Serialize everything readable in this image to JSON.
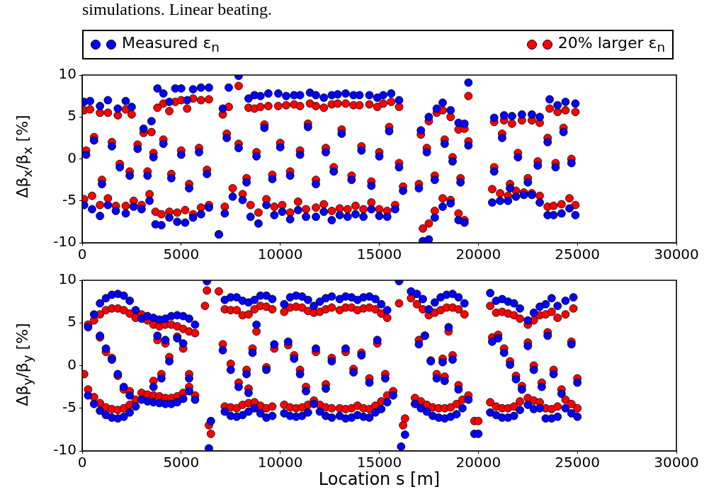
{
  "chart_data": [
    {
      "type": "scatter",
      "title": "simulations. Linear beating.",
      "ylabel": "Δβ$_{x}$/β$_{x}$ [%]",
      "legend": "top",
      "marker": "circle",
      "xlim": [
        0,
        30000
      ],
      "xticks": [
        0,
        5000,
        10000,
        15000,
        20000,
        25000,
        30000
      ],
      "ylim": [
        -10,
        10
      ],
      "yticks": [
        -10,
        -5,
        0,
        5,
        10
      ],
      "series": [
        {
          "name": "Measured ε$_{n}$",
          "color": "#0000ff",
          "x": [
            100,
            400,
            900,
            1300,
            1800,
            2200,
            2500,
            3100,
            3500,
            3800,
            4100,
            4400,
            4700,
            5000,
            5300,
            5600,
            6000,
            6400,
            7100,
            7400,
            7900,
            8400,
            8700,
            9000,
            9400,
            9900,
            10300,
            10700,
            11000,
            11500,
            11800,
            12200,
            12600,
            12900,
            13300,
            13700,
            14000,
            14500,
            14900,
            15200,
            15600,
            16000,
            17100,
            17500,
            17900,
            18200,
            18600,
            19000,
            19300,
            19500,
            20800,
            21300,
            21700,
            22200,
            22700,
            23100,
            23600,
            24000,
            24400,
            24900,
            100,
            500,
            900,
            1300,
            1700,
            2200,
            2600,
            3000,
            3400,
            3700,
            4000,
            4400,
            4800,
            5200,
            5600,
            6000,
            6400,
            6900,
            7200,
            7600,
            8100,
            8500,
            8900,
            9300,
            9700,
            10100,
            10500,
            10900,
            11300,
            11800,
            12200,
            12600,
            13000,
            13400,
            13800,
            14200,
            14600,
            15000,
            15400,
            15800,
            16200,
            17200,
            17500,
            17800,
            18200,
            18600,
            19000,
            19300,
            20700,
            21100,
            21500,
            21900,
            22300,
            22700,
            23100,
            23500,
            23800,
            24200,
            24600,
            24900,
            200,
            600,
            1000,
            1500,
            1900,
            2400,
            2800,
            3300,
            3600,
            4100,
            4500,
            5000,
            5400,
            5900,
            6300,
            7300,
            7900,
            8300,
            8800,
            9200,
            9600,
            10000,
            10500,
            11000,
            11400,
            11800,
            12300,
            12700,
            13100,
            13600,
            14100,
            14600,
            15000,
            15500,
            16000,
            17000,
            17400,
            17800,
            18300,
            18700,
            19100,
            19500,
            20800,
            21200,
            21600,
            22000,
            22500,
            23000,
            23500,
            23900,
            24300,
            24700
          ],
          "values": [
            6.8,
            6.9,
            6.3,
            7.0,
            6.0,
            6.9,
            6.2,
            3.6,
            4.5,
            8.4,
            7.8,
            6.8,
            8.4,
            8.4,
            7.0,
            8.3,
            8.5,
            8.5,
            6.0,
            8.5,
            9.9,
            7.2,
            7.6,
            7.5,
            7.8,
            7.8,
            7.5,
            7.6,
            7.6,
            7.9,
            7.6,
            7.3,
            7.6,
            7.7,
            7.8,
            7.6,
            7.6,
            7.6,
            7.3,
            7.6,
            7.8,
            7.0,
            3.4,
            5.0,
            6.0,
            6.7,
            5.8,
            4.3,
            4.2,
            9.1,
            4.9,
            5.2,
            5.1,
            5.3,
            5.3,
            5.0,
            7.1,
            6.4,
            6.8,
            6.6,
            -5.5,
            -6.0,
            -6.8,
            -5.5,
            -6.2,
            -6.5,
            -5.7,
            -6.0,
            -5.0,
            -7.8,
            -7.9,
            -7.0,
            -7.5,
            -7.6,
            -7.0,
            -6.6,
            -5.8,
            -9.0,
            -6.5,
            -4.5,
            -4.9,
            -6.9,
            -7.7,
            -5.5,
            -6.7,
            -6.3,
            -7.2,
            -6.1,
            -6.9,
            -6.9,
            -6.3,
            -7.3,
            -6.7,
            -6.9,
            -6.6,
            -6.9,
            -6.0,
            -6.8,
            -6.9,
            -6.0,
            -3.8,
            -9.8,
            -9.6,
            -7.0,
            -5.7,
            -5.3,
            -7.3,
            -7.6,
            -5.2,
            -5.0,
            -5.0,
            -4.5,
            -4.3,
            -4.3,
            -5.2,
            -6.7,
            -6.7,
            -6.5,
            -5.9,
            -6.7,
            0.5,
            2.2,
            -3.0,
            1.5,
            -1.0,
            -2.0,
            1.2,
            -2.0,
            0.2,
            1.8,
            -2.3,
            0.5,
            -3.5,
            0.8,
            -1.8,
            2.5,
            1.3,
            -2.8,
            0.3,
            3.7,
            -2.4,
            1.4,
            -2.0,
            0.5,
            3.8,
            -3.0,
            0.8,
            -1.5,
            3.0,
            -2.5,
            1.0,
            -3.2,
            0.3,
            3.3,
            -1.0,
            -3.5,
            0.8,
            -2.5,
            1.8,
            -0.3,
            -2.8,
            1.6,
            -1.5,
            2.5,
            -3.5,
            0.2,
            -2.8,
            -0.8,
            2.0,
            -1.0,
            3.2,
            -0.5
          ]
        },
        {
          "name": "20% larger ε$_{n}$",
          "color": "#ff0000",
          "x": [
            100,
            400,
            900,
            1300,
            1800,
            2200,
            2500,
            3100,
            3500,
            3800,
            4100,
            4400,
            4700,
            5000,
            5300,
            5600,
            6000,
            6400,
            7100,
            7400,
            7900,
            8400,
            8700,
            9000,
            9400,
            9900,
            10300,
            10700,
            11000,
            11500,
            11800,
            12200,
            12600,
            12900,
            13300,
            13700,
            14000,
            14500,
            14900,
            15200,
            15600,
            16000,
            17100,
            17500,
            17900,
            18200,
            18600,
            19000,
            19300,
            19500,
            20800,
            21300,
            21700,
            22200,
            22700,
            23100,
            23600,
            24000,
            24400,
            24900,
            100,
            500,
            900,
            1300,
            1700,
            2200,
            2600,
            3000,
            3400,
            3700,
            4000,
            4400,
            4800,
            5200,
            5600,
            6000,
            6400,
            6900,
            7200,
            7600,
            8100,
            8500,
            8900,
            9300,
            9700,
            10100,
            10500,
            10900,
            11300,
            11800,
            12200,
            12600,
            13000,
            13400,
            13800,
            14200,
            14600,
            15000,
            15400,
            15800,
            16200,
            17200,
            17500,
            17800,
            18200,
            18600,
            19000,
            19300,
            20700,
            21100,
            21500,
            21900,
            22300,
            22700,
            23100,
            23500,
            23800,
            24200,
            24600,
            24900,
            200,
            600,
            1000,
            1500,
            1900,
            2400,
            2800,
            3300,
            3600,
            4100,
            4500,
            5000,
            5400,
            5900,
            6300,
            7300,
            7900,
            8300,
            8800,
            9200,
            9600,
            10000,
            10500,
            11000,
            11400,
            11800,
            12300,
            12700,
            13100,
            13600,
            14100,
            14600,
            15000,
            15500,
            16000,
            17000,
            17400,
            17800,
            18300,
            18700,
            19100,
            19500,
            20800,
            21200,
            21600,
            22000,
            22500,
            23000,
            23500,
            23900,
            24300,
            24700
          ],
          "values": [
            5.8,
            5.9,
            5.5,
            5.5,
            5.2,
            5.9,
            5.3,
            3.1,
            3.2,
            6.1,
            6.6,
            5.7,
            6.8,
            7.0,
            6.0,
            7.2,
            7.0,
            7.1,
            5.3,
            6.2,
            8.7,
            6.1,
            6.0,
            6.2,
            6.3,
            6.3,
            6.4,
            6.5,
            6.3,
            6.6,
            6.3,
            6.1,
            6.5,
            6.6,
            6.6,
            6.4,
            6.4,
            6.5,
            6.2,
            6.6,
            6.8,
            6.2,
            2.9,
            4.5,
            5.5,
            5.8,
            5.0,
            3.5,
            3.6,
            7.5,
            4.4,
            4.6,
            4.2,
            4.6,
            4.6,
            4.3,
            6.0,
            5.6,
            5.8,
            5.6,
            -4.8,
            -4.4,
            -5.5,
            -4.7,
            -5.6,
            -5.6,
            -5.0,
            -5.5,
            -4.2,
            -6.3,
            -6.6,
            -6.3,
            -6.4,
            -6.1,
            -6.6,
            -5.8,
            -5.5,
            -9.0,
            -5.7,
            -3.5,
            -4.2,
            -5.5,
            -6.4,
            -4.8,
            -5.7,
            -5.5,
            -6.4,
            -5.1,
            -6.0,
            -5.8,
            -5.4,
            -6.2,
            -5.9,
            -6.0,
            -5.6,
            -6.0,
            -5.2,
            -6.0,
            -6.2,
            -5.5,
            -3.3,
            -8.3,
            -7.7,
            -6.2,
            -4.7,
            -4.9,
            -6.5,
            -7.3,
            -3.6,
            -4.1,
            -4.4,
            -3.8,
            -4.0,
            -4.1,
            -4.4,
            -5.7,
            -5.6,
            -5.4,
            -4.7,
            -5.5,
            1.0,
            2.6,
            -2.5,
            2.0,
            -0.6,
            -1.5,
            1.7,
            -1.5,
            0.7,
            2.3,
            -1.8,
            1.0,
            -3.0,
            1.3,
            -1.3,
            3.0,
            1.8,
            -2.3,
            0.8,
            4.1,
            -1.9,
            1.9,
            -1.5,
            1.0,
            4.2,
            -2.5,
            1.3,
            -1.0,
            3.5,
            -2.0,
            1.5,
            -2.7,
            0.8,
            3.8,
            -0.5,
            -3.0,
            1.3,
            -2.0,
            2.3,
            0.2,
            -2.3,
            2.1,
            -1.0,
            3.0,
            -3.0,
            0.7,
            -2.3,
            -0.3,
            2.5,
            -0.5,
            3.7,
            0.0
          ]
        }
      ]
    },
    {
      "type": "scatter",
      "xlabel": "Location s [m]",
      "ylabel": "Δβ$_{y}$/β$_{y}$ [%]",
      "marker": "circle",
      "xlim": [
        0,
        30000
      ],
      "xticks": [
        0,
        5000,
        10000,
        15000,
        20000,
        25000,
        30000
      ],
      "ylim": [
        -10,
        10
      ],
      "yticks": [
        -10,
        -5,
        0,
        5,
        10
      ],
      "series": [
        {
          "color": "#0000ff",
          "x": [
            300,
            600,
            900,
            1200,
            1500,
            1800,
            2100,
            2400,
            2700,
            3000,
            300,
            600,
            900,
            1200,
            1500,
            1800,
            2100,
            2400,
            2700,
            3000,
            900,
            1200,
            1500,
            1800,
            2100,
            2400,
            3300,
            3600,
            3900,
            4200,
            4500,
            4800,
            5100,
            5400,
            5700,
            3300,
            3600,
            3900,
            4200,
            4500,
            4800,
            5100,
            5400,
            5700,
            3600,
            4000,
            4400,
            4800,
            5100,
            5400,
            4200,
            3800,
            6300,
            6400,
            6500,
            7200,
            7500,
            7800,
            8100,
            8400,
            8700,
            9000,
            9300,
            9600,
            7200,
            7500,
            7800,
            8100,
            8400,
            8700,
            9000,
            9300,
            9600,
            7100,
            7500,
            7900,
            8400,
            8800,
            9300,
            9700,
            8300,
            8600,
            10200,
            10500,
            10800,
            11100,
            11400,
            11700,
            12000,
            12300,
            12600,
            10200,
            10500,
            10800,
            11100,
            11400,
            11700,
            12000,
            12300,
            12600,
            10400,
            10700,
            11000,
            11300,
            11800,
            12300,
            12600,
            13000,
            13300,
            13600,
            13900,
            14200,
            14500,
            14800,
            15100,
            15400,
            13000,
            13300,
            13600,
            13900,
            14200,
            14500,
            14800,
            15100,
            15400,
            13300,
            13700,
            14100,
            14500,
            14900,
            15300,
            15700,
            16000,
            16100,
            16300,
            16600,
            16900,
            17200,
            17500,
            17800,
            18100,
            18400,
            18700,
            19000,
            19300,
            16800,
            17100,
            17400,
            17700,
            18000,
            18300,
            18600,
            18900,
            19200,
            17000,
            17300,
            17600,
            17900,
            18200,
            18500,
            18700,
            18300,
            19000,
            19500,
            19800,
            20000,
            20600,
            20900,
            21200,
            21500,
            21800,
            22100,
            22500,
            22800,
            23100,
            23400,
            23700,
            24000,
            24400,
            24800,
            20600,
            20900,
            21200,
            21500,
            21800,
            22100,
            22500,
            22800,
            23100,
            23400,
            23700,
            24000,
            24400,
            24700,
            25000,
            20700,
            21000,
            21300,
            21600,
            21900,
            22200,
            22500,
            22800,
            23200,
            23500,
            23800,
            24200,
            24700,
            25000
          ],
          "values": [
            4.5,
            6.0,
            7.3,
            7.9,
            8.3,
            8.4,
            8.2,
            7.6,
            6.5,
            5.5,
            -3.5,
            -4.5,
            -5.3,
            -5.8,
            -6.1,
            -6.2,
            -6.0,
            -5.5,
            -4.8,
            -4.0,
            3.5,
            2.0,
            0.7,
            -1.0,
            -2.5,
            -3.5,
            5.8,
            5.6,
            5.4,
            5.5,
            5.8,
            5.9,
            5.8,
            5.5,
            4.8,
            -4.2,
            -4.3,
            -4.4,
            -4.5,
            -4.5,
            -4.3,
            -3.9,
            -3.0,
            -4.0,
            -2.5,
            -1.5,
            0.5,
            3.2,
            2.6,
            -1.5,
            3.0,
            3.5,
            9.9,
            -9.7,
            -6.5,
            7.7,
            8.0,
            8.0,
            7.6,
            7.4,
            7.7,
            8.2,
            8.2,
            7.8,
            -5.4,
            -5.9,
            -6.0,
            -5.8,
            -5.4,
            -5.0,
            -5.6,
            -6.1,
            -5.9,
            1.8,
            -0.5,
            -2.5,
            -3.2,
            4.8,
            -0.5,
            2.5,
            -1.0,
            1.5,
            7.2,
            8.0,
            8.2,
            8.1,
            7.7,
            7.0,
            7.5,
            7.9,
            8.1,
            -5.6,
            -5.9,
            -6.0,
            -5.9,
            -5.5,
            -4.5,
            -5.4,
            -5.9,
            -6.1,
            2.8,
            0.8,
            -1.0,
            -3.0,
            2.0,
            -2.7,
            0.5,
            7.8,
            8.1,
            8.0,
            7.7,
            8.0,
            8.1,
            7.8,
            7.2,
            6.5,
            -5.9,
            -6.2,
            -6.1,
            -5.8,
            -6.0,
            -6.1,
            -5.5,
            -5.1,
            -4.3,
            2.0,
            -0.8,
            1.2,
            -2.0,
            3.0,
            -1.5,
            -3.5,
            9.9,
            -9.5,
            -8.1,
            8.7,
            8.4,
            7.8,
            6.6,
            7.4,
            8.0,
            8.3,
            8.4,
            8.0,
            7.3,
            -4.5,
            -5.0,
            -5.4,
            -5.9,
            -6.1,
            -6.2,
            -6.0,
            -5.7,
            -5.0,
            2.5,
            3.5,
            0.5,
            -1.5,
            0.4,
            4.5,
            0.7,
            -1.8,
            -2.8,
            -4.0,
            -8.0,
            -8.0,
            8.5,
            7.6,
            7.8,
            7.5,
            7.3,
            6.7,
            5.3,
            6.2,
            6.9,
            7.2,
            7.9,
            7.0,
            7.6,
            8.0,
            -5.5,
            -5.8,
            -6.1,
            -6.1,
            -5.9,
            -5.2,
            -4.6,
            -5.1,
            -5.0,
            -6.2,
            -6.2,
            -6.0,
            -5.0,
            -5.6,
            -6.0,
            2.8,
            3.2,
            1.5,
            0.1,
            -1.6,
            -2.8,
            2.3,
            -0.5,
            -2.5,
            3.5,
            -1.0,
            -3.3,
            2.5,
            -2.0
          ]
        },
        {
          "color": "#ff0000",
          "x": [
            300,
            600,
            900,
            1200,
            1500,
            1800,
            2100,
            2400,
            2700,
            3000,
            300,
            600,
            900,
            1200,
            1500,
            1800,
            2100,
            2400,
            2700,
            3000,
            900,
            1200,
            1500,
            1800,
            2100,
            2400,
            100,
            3300,
            3600,
            3900,
            4200,
            4500,
            4800,
            5100,
            5400,
            5700,
            3300,
            3600,
            3900,
            4200,
            4500,
            4800,
            5100,
            5400,
            5700,
            3600,
            4000,
            4400,
            4800,
            5100,
            5400,
            4200,
            3800,
            6200,
            6300,
            6400,
            6500,
            6900,
            7200,
            7500,
            7800,
            8100,
            8400,
            8700,
            9000,
            9300,
            9600,
            7200,
            7500,
            7800,
            8100,
            8400,
            8700,
            9000,
            9300,
            9600,
            7100,
            7500,
            7900,
            8400,
            8800,
            9300,
            9700,
            8300,
            8600,
            10200,
            10500,
            10800,
            11100,
            11400,
            11700,
            12000,
            12300,
            12600,
            10200,
            10500,
            10800,
            11100,
            11400,
            11700,
            12000,
            12300,
            12600,
            10400,
            10700,
            11000,
            11300,
            11800,
            12300,
            12600,
            13000,
            13300,
            13600,
            13900,
            14200,
            14500,
            14800,
            15100,
            15400,
            13000,
            13300,
            13600,
            13900,
            14200,
            14500,
            14800,
            15100,
            15400,
            13300,
            13700,
            14100,
            14500,
            14900,
            15300,
            15700,
            16000,
            16200,
            16300,
            16600,
            16900,
            17200,
            17500,
            17800,
            18100,
            18400,
            18700,
            19000,
            19300,
            16800,
            17100,
            17400,
            17700,
            18000,
            18300,
            18600,
            18900,
            19200,
            17000,
            17300,
            17600,
            17900,
            18200,
            18500,
            18700,
            18300,
            19000,
            19500,
            19800,
            20000,
            20600,
            20900,
            21200,
            21500,
            21800,
            22100,
            22500,
            22800,
            23100,
            23400,
            23700,
            24000,
            24400,
            24800,
            20600,
            20900,
            21200,
            21500,
            21800,
            22100,
            22500,
            22800,
            23100,
            23400,
            23700,
            24000,
            24400,
            24700,
            25000,
            20700,
            21000,
            21300,
            21600,
            21900,
            22200,
            22500,
            22800,
            23200,
            23500,
            23800,
            24200,
            24700,
            25000
          ],
          "values": [
            4.8,
            5.3,
            6.0,
            6.5,
            6.7,
            6.7,
            6.5,
            6.1,
            5.6,
            6.0,
            -2.8,
            -3.7,
            -4.4,
            -4.9,
            -5.1,
            -5.2,
            -5.0,
            -4.6,
            -4.0,
            -3.2,
            3.3,
            1.6,
            0.9,
            -1.2,
            -2.8,
            -3.0,
            -1.0,
            5.3,
            4.8,
            4.6,
            4.8,
            4.8,
            4.6,
            4.3,
            4.0,
            3.8,
            -3.4,
            -3.5,
            -3.6,
            -3.8,
            -3.8,
            -3.6,
            -3.2,
            -2.5,
            -3.5,
            -1.8,
            -1.0,
            1.0,
            3.4,
            2.0,
            -1.0,
            2.6,
            3.0,
            7.0,
            8.8,
            -7.0,
            -8.0,
            8.7,
            6.6,
            6.5,
            6.5,
            5.9,
            6.0,
            6.6,
            7.0,
            6.9,
            6.6,
            -4.8,
            -4.9,
            -5.0,
            -4.6,
            -4.4,
            -4.3,
            -4.7,
            -5.0,
            -4.8,
            2.5,
            0.2,
            -2.0,
            -2.7,
            4.0,
            -0.2,
            2.0,
            -0.5,
            2.0,
            6.3,
            6.8,
            6.9,
            6.8,
            6.4,
            6.2,
            6.3,
            6.6,
            6.8,
            -4.6,
            -4.9,
            -5.0,
            -4.9,
            -4.6,
            -4.1,
            -4.6,
            -4.9,
            -5.0,
            2.4,
            1.2,
            -0.5,
            -2.5,
            1.6,
            -2.2,
            0.9,
            6.5,
            6.8,
            6.8,
            6.5,
            6.7,
            6.8,
            6.6,
            6.1,
            5.6,
            -5.0,
            -5.1,
            -5.0,
            -4.7,
            -5.0,
            -5.1,
            -4.7,
            -4.2,
            -3.5,
            1.6,
            -0.4,
            1.5,
            -1.5,
            2.6,
            -1.0,
            -3.0,
            7.3,
            -7.0,
            -6.2,
            7.9,
            7.2,
            6.6,
            5.9,
            6.2,
            6.5,
            6.8,
            6.8,
            6.6,
            6.0,
            -3.8,
            -4.2,
            -4.6,
            -4.9,
            -5.0,
            -5.0,
            -4.9,
            -4.5,
            -4.0,
            3.0,
            3.5,
            0.6,
            -1.0,
            0.8,
            4.0,
            1.2,
            -1.3,
            -2.3,
            -3.5,
            -6.5,
            -6.5,
            7.0,
            6.2,
            6.3,
            6.1,
            5.9,
            5.5,
            4.8,
            5.3,
            5.9,
            6.0,
            6.3,
            5.6,
            6.0,
            6.7,
            -4.3,
            -4.8,
            -5.0,
            -5.0,
            -4.8,
            -4.2,
            -3.8,
            -4.1,
            -4.3,
            -5.0,
            -5.1,
            -4.8,
            -4.0,
            -4.5,
            -5.0,
            3.3,
            3.6,
            2.0,
            0.5,
            -1.2,
            -2.4,
            2.7,
            0.0,
            -2.0,
            3.9,
            -0.5,
            -2.8,
            2.8,
            -1.5
          ]
        }
      ]
    }
  ]
}
